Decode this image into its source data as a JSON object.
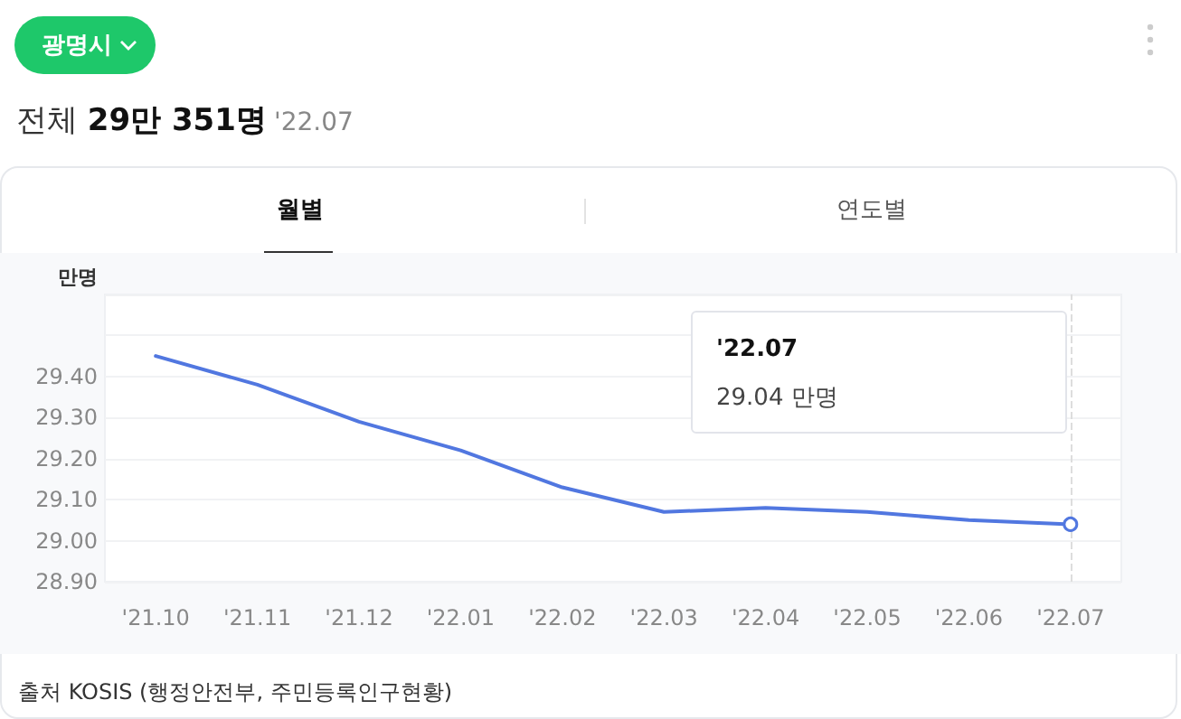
{
  "chart_data": {
    "type": "line",
    "title": "전체 29만 351명",
    "subtitle": "'22.07",
    "ylabel": "만명",
    "categories": [
      "'21.10",
      "'21.11",
      "'21.12",
      "'22.01",
      "'22.02",
      "'22.03",
      "'22.04",
      "'22.05",
      "'22.06",
      "'22.07"
    ],
    "series": [
      {
        "color": "#5177e0",
        "values": [
          29.45,
          29.38,
          29.29,
          29.22,
          29.13,
          29.07,
          29.08,
          29.07,
          29.05,
          29.04
        ]
      }
    ],
    "ylim": [
      28.9,
      29.6
    ],
    "yticks": [
      {
        "value": 28.9,
        "label": "28.90"
      },
      {
        "value": 29.0,
        "label": "29.00"
      },
      {
        "value": 29.1,
        "label": "29.10"
      },
      {
        "value": 29.2,
        "label": "29.20"
      },
      {
        "value": 29.3,
        "label": "29.30"
      },
      {
        "value": 29.4,
        "label": "29.40"
      },
      {
        "value": 29.5,
        "label": null
      },
      {
        "value": 29.6,
        "label": null
      }
    ],
    "grid": "y",
    "marker": "none",
    "line_style": "solid",
    "ref_lines": [
      {
        "axis": "x",
        "value": "'22.07",
        "color": "#dddddd",
        "line_style": "dashed"
      }
    ],
    "annotations": [
      "광명시",
      "월별",
      "연도별",
      "'22.07",
      "29.04 만명",
      "출처 KOSIS (행정안전부, 주민등록인구현황)"
    ]
  }
}
